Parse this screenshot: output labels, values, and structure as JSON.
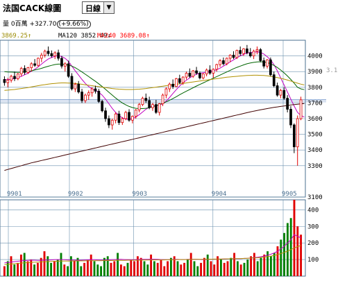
{
  "window": {
    "title": "法国CACK線圖",
    "period_label": "日線",
    "period_dropdown_icon": "chevron-down-icon"
  },
  "info_line": {
    "volume_label": "量 0百萬",
    "change_text": "+327.70",
    "change_pct_text": "(+9.66%)"
  },
  "ma_line": {
    "ma60_text": "3869.25↑",
    "ma120_text": "MA120 3852.49↓",
    "ma240_text": "MA240 3689.08↑",
    "ma60_color": "#9a8a00",
    "ma120_color": "#000000",
    "ma240_color": "#ff0000"
  },
  "right_stub_label": "3.1",
  "colors": {
    "up": "#e00000",
    "down": "#000000",
    "vol_up": "#e00000",
    "vol_down": "#008000",
    "grid": "#6a8fae",
    "ma_short": "#c000c0",
    "ma_mid": "#006400",
    "ma_long": "#b09000",
    "ma_longest": "#400000",
    "hline": "#5f86c2"
  },
  "chart_data": [
    {
      "type": "candlestick",
      "title": "",
      "x_labels": [
        "9901",
        "9902",
        "9903",
        "9904",
        "9905"
      ],
      "y_ticks": [
        "4000",
        "3900",
        "3800",
        "3700",
        "3600",
        "3500",
        "3400",
        "3300",
        "3100"
      ],
      "ylim": [
        3100,
        4100
      ],
      "grid": true,
      "reference_level": 3720,
      "candles": [
        [
          3850,
          3870,
          3810,
          3830
        ],
        [
          3830,
          3860,
          3800,
          3845
        ],
        [
          3845,
          3880,
          3830,
          3870
        ],
        [
          3870,
          3900,
          3840,
          3855
        ],
        [
          3855,
          3890,
          3845,
          3885
        ],
        [
          3885,
          3930,
          3870,
          3920
        ],
        [
          3920,
          3940,
          3880,
          3895
        ],
        [
          3895,
          3930,
          3885,
          3925
        ],
        [
          3925,
          3960,
          3900,
          3950
        ],
        [
          3950,
          3980,
          3930,
          3940
        ],
        [
          3940,
          3990,
          3930,
          3985
        ],
        [
          3985,
          4020,
          3960,
          4005
        ],
        [
          4005,
          4040,
          3990,
          4030
        ],
        [
          4030,
          4060,
          4000,
          4015
        ],
        [
          4015,
          4035,
          3990,
          4000
        ],
        [
          4000,
          4030,
          3980,
          4020
        ],
        [
          4020,
          4040,
          3970,
          3985
        ],
        [
          3985,
          4000,
          3920,
          3935
        ],
        [
          3935,
          3960,
          3900,
          3950
        ],
        [
          3950,
          3970,
          3860,
          3870
        ],
        [
          3870,
          3890,
          3780,
          3790
        ],
        [
          3790,
          3830,
          3770,
          3820
        ],
        [
          3820,
          3840,
          3760,
          3770
        ],
        [
          3770,
          3790,
          3700,
          3715
        ],
        [
          3715,
          3760,
          3700,
          3750
        ],
        [
          3750,
          3780,
          3720,
          3765
        ],
        [
          3765,
          3800,
          3740,
          3790
        ],
        [
          3790,
          3810,
          3760,
          3775
        ],
        [
          3775,
          3790,
          3700,
          3710
        ],
        [
          3710,
          3720,
          3640,
          3650
        ],
        [
          3650,
          3670,
          3580,
          3600
        ],
        [
          3600,
          3620,
          3540,
          3560
        ],
        [
          3560,
          3600,
          3530,
          3590
        ],
        [
          3590,
          3640,
          3570,
          3630
        ],
        [
          3630,
          3650,
          3560,
          3575
        ],
        [
          3575,
          3610,
          3560,
          3600
        ],
        [
          3600,
          3650,
          3590,
          3640
        ],
        [
          3640,
          3660,
          3580,
          3590
        ],
        [
          3590,
          3620,
          3570,
          3615
        ],
        [
          3615,
          3660,
          3600,
          3655
        ],
        [
          3655,
          3700,
          3640,
          3690
        ],
        [
          3690,
          3740,
          3680,
          3730
        ],
        [
          3730,
          3760,
          3700,
          3715
        ],
        [
          3715,
          3740,
          3660,
          3670
        ],
        [
          3670,
          3700,
          3650,
          3690
        ],
        [
          3690,
          3720,
          3630,
          3640
        ],
        [
          3640,
          3700,
          3620,
          3695
        ],
        [
          3695,
          3760,
          3680,
          3750
        ],
        [
          3750,
          3800,
          3730,
          3790
        ],
        [
          3790,
          3830,
          3770,
          3820
        ],
        [
          3820,
          3850,
          3790,
          3805
        ],
        [
          3805,
          3860,
          3800,
          3855
        ],
        [
          3855,
          3880,
          3820,
          3830
        ],
        [
          3830,
          3870,
          3815,
          3865
        ],
        [
          3865,
          3900,
          3850,
          3890
        ],
        [
          3890,
          3920,
          3860,
          3870
        ],
        [
          3870,
          3910,
          3860,
          3905
        ],
        [
          3905,
          3930,
          3880,
          3890
        ],
        [
          3890,
          3900,
          3850,
          3860
        ],
        [
          3860,
          3890,
          3850,
          3885
        ],
        [
          3885,
          3920,
          3870,
          3910
        ],
        [
          3910,
          3940,
          3880,
          3890
        ],
        [
          3890,
          3920,
          3860,
          3915
        ],
        [
          3915,
          3950,
          3900,
          3945
        ],
        [
          3945,
          3980,
          3930,
          3970
        ],
        [
          3970,
          3990,
          3940,
          3950
        ],
        [
          3950,
          3990,
          3940,
          3985
        ],
        [
          3985,
          4010,
          3960,
          4005
        ],
        [
          4005,
          4030,
          3980,
          3990
        ],
        [
          3990,
          4040,
          3980,
          4035
        ],
        [
          4035,
          4060,
          4000,
          4015
        ],
        [
          4015,
          4050,
          4000,
          4045
        ],
        [
          4045,
          4070,
          4010,
          4020
        ],
        [
          4020,
          4050,
          3990,
          4000
        ],
        [
          4000,
          4040,
          3980,
          4030
        ],
        [
          4030,
          4060,
          4010,
          4040
        ],
        [
          4040,
          4050,
          3960,
          3970
        ],
        [
          3970,
          3990,
          3920,
          3935
        ],
        [
          3935,
          3980,
          3920,
          3975
        ],
        [
          3975,
          3990,
          3870,
          3880
        ],
        [
          3880,
          3900,
          3800,
          3810
        ],
        [
          3810,
          3830,
          3740,
          3750
        ],
        [
          3750,
          3790,
          3730,
          3780
        ],
        [
          3780,
          3800,
          3720,
          3730
        ],
        [
          3730,
          3750,
          3640,
          3660
        ],
        [
          3660,
          3680,
          3540,
          3560
        ],
        [
          3560,
          3570,
          3380,
          3420
        ],
        [
          3420,
          3620,
          3300,
          3600
        ],
        [
          3600,
          3740,
          3590,
          3720
        ]
      ],
      "indicators": {
        "ma_short": [
          3850,
          3848,
          3852,
          3856,
          3860,
          3870,
          3880,
          3890,
          3902,
          3915,
          3930,
          3948,
          3965,
          3980,
          3990,
          3998,
          4002,
          3996,
          3985,
          3965,
          3935,
          3905,
          3878,
          3850,
          3825,
          3805,
          3790,
          3780,
          3768,
          3750,
          3725,
          3695,
          3665,
          3640,
          3620,
          3605,
          3598,
          3595,
          3600,
          3610,
          3625,
          3642,
          3660,
          3672,
          3680,
          3684,
          3686,
          3695,
          3712,
          3735,
          3760,
          3785,
          3808,
          3828,
          3845,
          3860,
          3873,
          3883,
          3890,
          3893,
          3896,
          3900,
          3905,
          3912,
          3922,
          3935,
          3948,
          3962,
          3975,
          3988,
          4000,
          4010,
          4018,
          4022,
          4024,
          4026,
          4022,
          4012,
          3995,
          3975,
          3945,
          3905,
          3860,
          3815,
          3770,
          3725,
          3680,
          3640,
          3620,
          3610
        ],
        "ma_mid": [
          3900,
          3898,
          3897,
          3896,
          3895,
          3896,
          3898,
          3901,
          3905,
          3910,
          3915,
          3921,
          3928,
          3934,
          3940,
          3945,
          3948,
          3948,
          3946,
          3942,
          3935,
          3925,
          3912,
          3898,
          3883,
          3868,
          3853,
          3838,
          3822,
          3805,
          3787,
          3768,
          3750,
          3732,
          3715,
          3700,
          3688,
          3678,
          3671,
          3666,
          3664,
          3664,
          3666,
          3670,
          3676,
          3683,
          3690,
          3698,
          3707,
          3717,
          3728,
          3740,
          3752,
          3764,
          3775,
          3786,
          3797,
          3808,
          3818,
          3828,
          3838,
          3848,
          3858,
          3868,
          3878,
          3888,
          3898,
          3908,
          3918,
          3927,
          3935,
          3943,
          3950,
          3955,
          3959,
          3962,
          3963,
          3962,
          3958,
          3950,
          3940,
          3926,
          3910,
          3892,
          3872,
          3850,
          3826,
          3800,
          3790,
          3785
        ],
        "ma_long": [
          3780,
          3782,
          3784,
          3786,
          3789,
          3792,
          3795,
          3798,
          3802,
          3806,
          3810,
          3814,
          3817,
          3820,
          3823,
          3825,
          3827,
          3828,
          3828,
          3827,
          3826,
          3824,
          3822,
          3819,
          3816,
          3813,
          3810,
          3807,
          3804,
          3801,
          3798,
          3795,
          3792,
          3790,
          3788,
          3787,
          3786,
          3786,
          3786,
          3787,
          3788,
          3790,
          3792,
          3795,
          3798,
          3801,
          3804,
          3807,
          3810,
          3813,
          3816,
          3819,
          3822,
          3825,
          3828,
          3831,
          3834,
          3837,
          3840,
          3843,
          3846,
          3849,
          3852,
          3855,
          3858,
          3861,
          3864,
          3866,
          3868,
          3870,
          3872,
          3874,
          3875,
          3876,
          3877,
          3877,
          3876,
          3875,
          3873,
          3870,
          3866,
          3862,
          3857,
          3852,
          3846,
          3840,
          3833,
          3826,
          3820,
          3815
        ],
        "ma_longest": [
          3270,
          3276,
          3282,
          3288,
          3294,
          3300,
          3306,
          3312,
          3318,
          3323,
          3328,
          3333,
          3338,
          3343,
          3348,
          3353,
          3358,
          3363,
          3368,
          3373,
          3378,
          3383,
          3388,
          3393,
          3398,
          3403,
          3408,
          3413,
          3418,
          3423,
          3428,
          3433,
          3438,
          3443,
          3448,
          3453,
          3458,
          3463,
          3468,
          3473,
          3478,
          3483,
          3488,
          3493,
          3498,
          3503,
          3508,
          3513,
          3518,
          3523,
          3528,
          3533,
          3538,
          3543,
          3548,
          3553,
          3558,
          3563,
          3568,
          3573,
          3578,
          3583,
          3588,
          3593,
          3598,
          3603,
          3608,
          3613,
          3618,
          3623,
          3628,
          3633,
          3638,
          3643,
          3648,
          3652,
          3656,
          3660,
          3664,
          3668,
          3672,
          3675,
          3678,
          3681,
          3684,
          3687,
          3690,
          3692,
          3694,
          3696
        ]
      }
    },
    {
      "type": "bar",
      "title": "",
      "y_ticks": [
        "400",
        "300",
        "200",
        "100"
      ],
      "ylim": [
        0,
        460
      ],
      "grid": true,
      "values": [
        60,
        90,
        120,
        70,
        80,
        130,
        140,
        90,
        100,
        70,
        80,
        110,
        150,
        120,
        80,
        90,
        100,
        140,
        70,
        60,
        120,
        90,
        110,
        60,
        80,
        100,
        130,
        90,
        70,
        60,
        110,
        120,
        80,
        90,
        140,
        70,
        60,
        80,
        100,
        90,
        120,
        110,
        90,
        70,
        130,
        90,
        80,
        100,
        60,
        90,
        110,
        120,
        90,
        70,
        80,
        100,
        140,
        90,
        60,
        80,
        110,
        130,
        90,
        70,
        120,
        100,
        80,
        90,
        110,
        140,
        90,
        70,
        80,
        100,
        120,
        140,
        90,
        110,
        130,
        150,
        120,
        140,
        180,
        220,
        260,
        320,
        350,
        460,
        300,
        250
      ],
      "up_flags": [
        1,
        0,
        1,
        0,
        1,
        1,
        0,
        1,
        1,
        0,
        1,
        1,
        1,
        0,
        0,
        1,
        0,
        0,
        1,
        0,
        0,
        1,
        0,
        0,
        1,
        1,
        1,
        0,
        0,
        0,
        0,
        0,
        1,
        1,
        0,
        1,
        1,
        0,
        1,
        1,
        1,
        1,
        0,
        0,
        1,
        0,
        1,
        1,
        1,
        1,
        0,
        1,
        0,
        1,
        1,
        0,
        1,
        0,
        0,
        1,
        1,
        0,
        1,
        1,
        1,
        0,
        1,
        1,
        0,
        1,
        0,
        1,
        0,
        0,
        1,
        1,
        0,
        0,
        1,
        0,
        0,
        0,
        1,
        0,
        0,
        0,
        0,
        1,
        1,
        1
      ],
      "indicator": [
        80,
        82,
        85,
        88,
        90,
        92,
        94,
        95,
        96,
        96,
        95,
        95,
        96,
        97,
        98,
        99,
        100,
        100,
        99,
        98,
        97,
        97,
        96,
        96,
        97,
        98,
        99,
        99,
        98,
        97,
        97,
        98,
        99,
        100,
        101,
        101,
        100,
        99,
        99,
        99,
        100,
        101,
        101,
        101,
        102,
        102,
        101,
        100,
        99,
        99,
        100,
        101,
        101,
        100,
        100,
        101,
        102,
        102,
        101,
        100,
        100,
        101,
        102,
        102,
        103,
        103,
        103,
        104,
        105,
        106,
        106,
        106,
        107,
        108,
        110,
        112,
        114,
        117,
        121,
        126,
        132,
        140,
        150,
        165,
        180,
        200,
        220,
        250,
        240,
        230
      ],
      "indicator2": [
        70,
        71,
        73,
        75,
        77,
        79,
        80,
        82,
        83,
        84,
        85,
        86,
        87,
        88,
        89,
        90,
        90,
        91,
        91,
        91,
        91,
        92,
        92,
        92,
        92,
        93,
        93,
        93,
        93,
        93,
        94,
        94,
        94,
        95,
        95,
        95,
        95,
        96,
        96,
        96,
        96,
        97,
        97,
        97,
        98,
        98,
        98,
        98,
        98,
        99,
        99,
        99,
        100,
        100,
        100,
        100,
        101,
        101,
        101,
        101,
        102,
        102,
        102,
        103,
        103,
        103,
        104,
        104,
        105,
        105,
        106,
        106,
        107,
        108,
        109,
        110,
        111,
        113,
        115,
        118,
        121,
        125,
        130,
        136,
        143,
        151,
        160,
        170,
        178,
        185
      ]
    }
  ]
}
